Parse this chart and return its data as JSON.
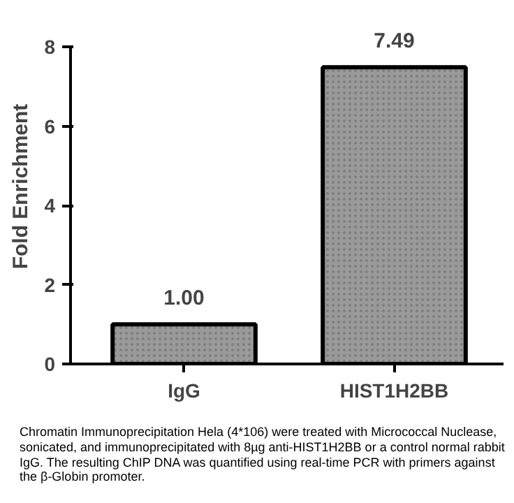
{
  "chart_data": {
    "type": "bar",
    "ylabel": "Fold Enrichment",
    "categories": [
      "IgG",
      "HIST1H2BB"
    ],
    "values": [
      1.0,
      7.49
    ],
    "value_labels": [
      "1.00",
      "7.49"
    ],
    "color": "#9a9a9a",
    "ylim": [
      0,
      8
    ],
    "yticks": [
      0,
      2,
      4,
      6,
      8
    ],
    "grid": false,
    "annotations": [
      "Chromatin Immunoprecipitation Hela (4*106) were treated with Micrococcal Nuclease, sonicated, and immunoprecipitated with 8µg anti-HIST1H2BB or a control normal rabbit IgG. The resulting ChIP DNA was quantified using real-time PCR with primers against the β-Globin promoter."
    ]
  }
}
